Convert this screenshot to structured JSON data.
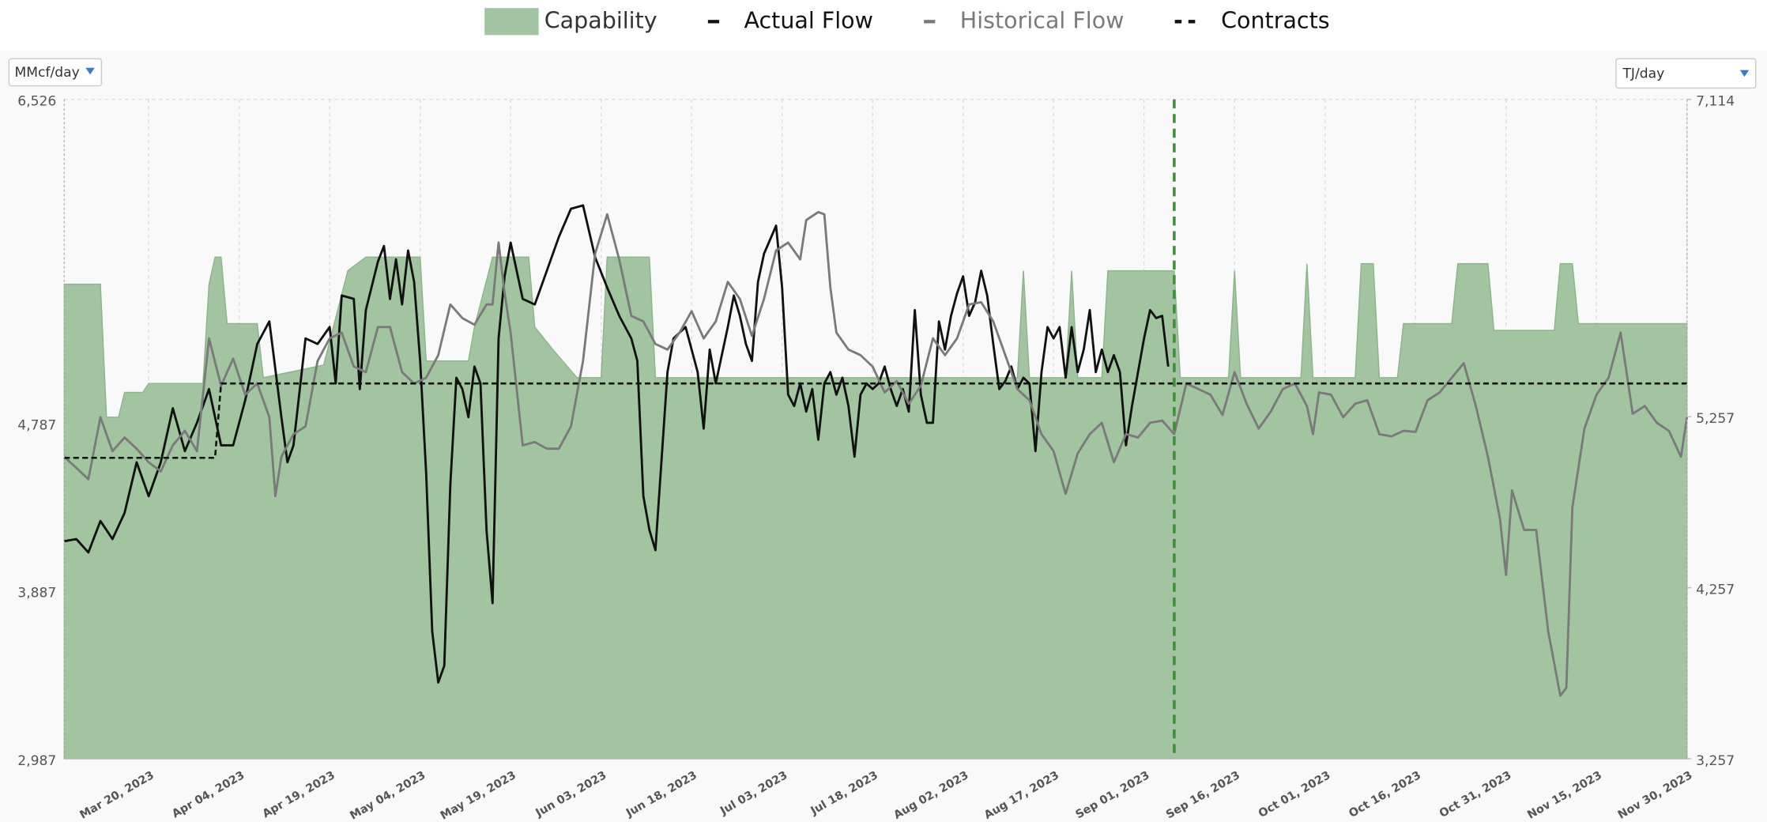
{
  "chart_data": {
    "type": "line",
    "legend": "top",
    "grid": true,
    "ylabel": "MMcf/day",
    "y2label": "TJ/day",
    "xlim": [
      "2023-03-06",
      "2023-11-30"
    ],
    "xticks": [
      {
        "value": "2023-03-20",
        "label": "Mar 20, 2023"
      },
      {
        "value": "2023-04-04",
        "label": "Apr 04, 2023"
      },
      {
        "value": "2023-04-19",
        "label": "Apr 19, 2023"
      },
      {
        "value": "2023-05-04",
        "label": "May 04, 2023"
      },
      {
        "value": "2023-05-19",
        "label": "May 19, 2023"
      },
      {
        "value": "2023-06-03",
        "label": "Jun 03, 2023"
      },
      {
        "value": "2023-06-18",
        "label": "Jun 18, 2023"
      },
      {
        "value": "2023-07-03",
        "label": "Jul 03, 2023"
      },
      {
        "value": "2023-07-18",
        "label": "Jul 18, 2023"
      },
      {
        "value": "2023-08-02",
        "label": "Aug 02, 2023"
      },
      {
        "value": "2023-08-17",
        "label": "Aug 17, 2023"
      },
      {
        "value": "2023-09-01",
        "label": "Sep 01, 2023"
      },
      {
        "value": "2023-09-16",
        "label": "Sep 16, 2023"
      },
      {
        "value": "2023-10-01",
        "label": "Oct 01, 2023"
      },
      {
        "value": "2023-10-16",
        "label": "Oct 16, 2023"
      },
      {
        "value": "2023-10-31",
        "label": "Oct 31, 2023"
      },
      {
        "value": "2023-11-15",
        "label": "Nov 15, 2023"
      },
      {
        "value": "2023-11-30",
        "label": "Nov 30, 2023"
      }
    ],
    "ylim": [
      2987,
      6526
    ],
    "yticks": [
      {
        "value": 2987,
        "label": "2,987"
      },
      {
        "value": 3887,
        "label": "3,887"
      },
      {
        "value": 4787,
        "label": "4,787"
      },
      {
        "value": 6526,
        "label": "6,526"
      }
    ],
    "y2lim": [
      3257,
      7114
    ],
    "y2ticks": [
      {
        "value": 3257,
        "label": "3,257"
      },
      {
        "value": 4257,
        "label": "4,257"
      },
      {
        "value": 5257,
        "label": "5,257"
      },
      {
        "value": 7114,
        "label": "7,114"
      }
    ],
    "vline": {
      "x": "2023-09-06",
      "color": "#3f8f3a"
    },
    "series": [
      {
        "name": "Capability",
        "style": "area",
        "color": "#a3c4a1",
        "x": [
          "2023-03-06",
          "2023-03-12",
          "2023-03-13",
          "2023-03-15",
          "2023-03-16",
          "2023-03-19",
          "2023-03-20",
          "2023-03-29",
          "2023-03-30",
          "2023-03-31",
          "2023-04-01",
          "2023-04-02",
          "2023-04-07",
          "2023-04-08",
          "2023-04-18",
          "2023-04-22",
          "2023-04-25",
          "2023-05-04",
          "2023-05-05",
          "2023-05-12",
          "2023-05-13",
          "2023-05-16",
          "2023-05-22",
          "2023-05-23",
          "2023-05-26",
          "2023-05-30",
          "2023-06-03",
          "2023-06-04",
          "2023-06-11",
          "2023-06-12",
          "2023-08-11",
          "2023-08-12",
          "2023-08-13",
          "2023-08-19",
          "2023-08-20",
          "2023-08-21",
          "2023-08-25",
          "2023-08-26",
          "2023-09-06",
          "2023-09-07",
          "2023-09-15",
          "2023-09-16",
          "2023-09-17",
          "2023-09-27",
          "2023-09-28",
          "2023-09-29",
          "2023-10-06",
          "2023-10-07",
          "2023-10-09",
          "2023-10-10",
          "2023-10-13",
          "2023-10-14",
          "2023-10-22",
          "2023-10-23",
          "2023-10-28",
          "2023-10-29",
          "2023-11-08",
          "2023-11-09",
          "2023-11-11",
          "2023-11-12",
          "2023-11-30"
        ],
        "values": [
          5534,
          5534,
          4820,
          4820,
          4953,
          4953,
          5001,
          5001,
          5534,
          5679,
          5679,
          5322,
          5322,
          5032,
          5100,
          5606,
          5679,
          5679,
          5122,
          5122,
          5304,
          5679,
          5679,
          5304,
          5183,
          5032,
          5032,
          5679,
          5679,
          5032,
          5032,
          5606,
          5032,
          5032,
          5606,
          5032,
          5032,
          5606,
          5606,
          5032,
          5032,
          5606,
          5032,
          5032,
          5644,
          5032,
          5032,
          5644,
          5644,
          5032,
          5032,
          5322,
          5322,
          5644,
          5644,
          5286,
          5286,
          5644,
          5644,
          5322,
          5322
        ]
      },
      {
        "name": "Actual Flow",
        "style": "line",
        "color": "#111111",
        "x": [
          "2023-03-06",
          "2023-03-08",
          "2023-03-10",
          "2023-03-12",
          "2023-03-14",
          "2023-03-16",
          "2023-03-18",
          "2023-03-20",
          "2023-03-22",
          "2023-03-24",
          "2023-03-26",
          "2023-03-28",
          "2023-03-30",
          "2023-04-01",
          "2023-04-03",
          "2023-04-05",
          "2023-04-07",
          "2023-04-09",
          "2023-04-11",
          "2023-04-12",
          "2023-04-13",
          "2023-04-15",
          "2023-04-17",
          "2023-04-19",
          "2023-04-20",
          "2023-04-21",
          "2023-04-23",
          "2023-04-24",
          "2023-04-25",
          "2023-04-27",
          "2023-04-28",
          "2023-04-29",
          "2023-04-30",
          "2023-05-01",
          "2023-05-02",
          "2023-05-03",
          "2023-05-04",
          "2023-05-05",
          "2023-05-06",
          "2023-05-07",
          "2023-05-08",
          "2023-05-09",
          "2023-05-10",
          "2023-05-11",
          "2023-05-12",
          "2023-05-13",
          "2023-05-14",
          "2023-05-15",
          "2023-05-16",
          "2023-05-17",
          "2023-05-18",
          "2023-05-19",
          "2023-05-21",
          "2023-05-23",
          "2023-05-25",
          "2023-05-27",
          "2023-05-29",
          "2023-05-31",
          "2023-06-02",
          "2023-06-04",
          "2023-06-06",
          "2023-06-08",
          "2023-06-09",
          "2023-06-10",
          "2023-06-11",
          "2023-06-12",
          "2023-06-14",
          "2023-06-15",
          "2023-06-17",
          "2023-06-18",
          "2023-06-19",
          "2023-06-20",
          "2023-06-21",
          "2023-06-22",
          "2023-06-24",
          "2023-06-25",
          "2023-06-26",
          "2023-06-27",
          "2023-06-28",
          "2023-06-29",
          "2023-06-30",
          "2023-07-02",
          "2023-07-03",
          "2023-07-04",
          "2023-07-05",
          "2023-07-06",
          "2023-07-07",
          "2023-07-08",
          "2023-07-09",
          "2023-07-10",
          "2023-07-11",
          "2023-07-12",
          "2023-07-13",
          "2023-07-14",
          "2023-07-15",
          "2023-07-16",
          "2023-07-17",
          "2023-07-18",
          "2023-07-19",
          "2023-07-20",
          "2023-07-21",
          "2023-07-22",
          "2023-07-23",
          "2023-07-24",
          "2023-07-25",
          "2023-07-26",
          "2023-07-27",
          "2023-07-28",
          "2023-07-29",
          "2023-07-30",
          "2023-07-31",
          "2023-08-01",
          "2023-08-02",
          "2023-08-03",
          "2023-08-04",
          "2023-08-05",
          "2023-08-06",
          "2023-08-07",
          "2023-08-08",
          "2023-08-09",
          "2023-08-10",
          "2023-08-11",
          "2023-08-12",
          "2023-08-13",
          "2023-08-14",
          "2023-08-15",
          "2023-08-16",
          "2023-08-17",
          "2023-08-18",
          "2023-08-19",
          "2023-08-20",
          "2023-08-21",
          "2023-08-22",
          "2023-08-23",
          "2023-08-24",
          "2023-08-25",
          "2023-08-26",
          "2023-08-27",
          "2023-08-28",
          "2023-08-29",
          "2023-08-30",
          "2023-08-31",
          "2023-09-01",
          "2023-09-02",
          "2023-09-03",
          "2023-09-04",
          "2023-09-05"
        ],
        "values": [
          4154,
          4166,
          4094,
          4263,
          4166,
          4306,
          4578,
          4396,
          4578,
          4868,
          4638,
          4790,
          4971,
          4669,
          4669,
          4911,
          5213,
          5334,
          4820,
          4578,
          4669,
          5243,
          5213,
          5304,
          5001,
          5473,
          5455,
          4971,
          5395,
          5655,
          5739,
          5455,
          5667,
          5425,
          5715,
          5546,
          5122,
          4517,
          3670,
          3396,
          3486,
          4457,
          5032,
          4971,
          4820,
          5092,
          5001,
          4215,
          3822,
          5243,
          5576,
          5757,
          5455,
          5425,
          5606,
          5788,
          5939,
          5957,
          5679,
          5516,
          5364,
          5243,
          5122,
          4396,
          4215,
          4106,
          5062,
          5243,
          5304,
          5183,
          5062,
          4759,
          5183,
          5001,
          5304,
          5473,
          5364,
          5213,
          5122,
          5546,
          5697,
          5848,
          5516,
          4941,
          4880,
          5001,
          4850,
          4971,
          4699,
          5001,
          5062,
          4941,
          5032,
          4880,
          4608,
          4941,
          5001,
          4971,
          5001,
          5092,
          4971,
          4880,
          4971,
          4850,
          5395,
          4941,
          4790,
          4790,
          5334,
          5183,
          5364,
          5485,
          5576,
          5364,
          5437,
          5606,
          5473,
          5213,
          4971,
          5014,
          5092,
          4971,
          5032,
          5001,
          4638,
          5062,
          5304,
          5243,
          5304,
          5032,
          5304,
          5062,
          5183,
          5395,
          5062,
          5183,
          5062,
          5153,
          5062,
          4669,
          4880,
          5062,
          5243,
          5395,
          5352,
          5364,
          5092
        ]
      },
      {
        "name": "Historical Flow",
        "style": "line",
        "color": "#7a7a7a",
        "x": [
          "2023-03-06",
          "2023-03-08",
          "2023-03-10",
          "2023-03-12",
          "2023-03-14",
          "2023-03-16",
          "2023-03-18",
          "2023-03-20",
          "2023-03-22",
          "2023-03-24",
          "2023-03-26",
          "2023-03-28",
          "2023-03-30",
          "2023-04-01",
          "2023-04-03",
          "2023-04-05",
          "2023-04-07",
          "2023-04-09",
          "2023-04-10",
          "2023-04-11",
          "2023-04-13",
          "2023-04-15",
          "2023-04-17",
          "2023-04-19",
          "2023-04-21",
          "2023-04-23",
          "2023-04-25",
          "2023-04-27",
          "2023-04-29",
          "2023-05-01",
          "2023-05-03",
          "2023-05-05",
          "2023-05-07",
          "2023-05-09",
          "2023-05-11",
          "2023-05-13",
          "2023-05-15",
          "2023-05-16",
          "2023-05-17",
          "2023-05-18",
          "2023-05-19",
          "2023-05-21",
          "2023-05-23",
          "2023-05-25",
          "2023-05-27",
          "2023-05-29",
          "2023-05-31",
          "2023-06-02",
          "2023-06-04",
          "2023-06-06",
          "2023-06-08",
          "2023-06-10",
          "2023-06-12",
          "2023-06-14",
          "2023-06-16",
          "2023-06-18",
          "2023-06-20",
          "2023-06-22",
          "2023-06-24",
          "2023-06-26",
          "2023-06-28",
          "2023-06-30",
          "2023-07-02",
          "2023-07-04",
          "2023-07-06",
          "2023-07-07",
          "2023-07-09",
          "2023-07-10",
          "2023-07-11",
          "2023-07-12",
          "2023-07-14",
          "2023-07-16",
          "2023-07-18",
          "2023-07-20",
          "2023-07-22",
          "2023-07-24",
          "2023-07-26",
          "2023-07-28",
          "2023-07-30",
          "2023-08-01",
          "2023-08-03",
          "2023-08-05",
          "2023-08-07",
          "2023-08-09",
          "2023-08-11",
          "2023-08-13",
          "2023-08-15",
          "2023-08-17",
          "2023-08-19",
          "2023-08-21",
          "2023-08-23",
          "2023-08-25",
          "2023-08-27",
          "2023-08-29",
          "2023-08-31",
          "2023-09-02",
          "2023-09-04",
          "2023-09-06",
          "2023-09-08",
          "2023-09-10",
          "2023-09-12",
          "2023-09-14",
          "2023-09-16",
          "2023-09-18",
          "2023-09-20",
          "2023-09-22",
          "2023-09-24",
          "2023-09-26",
          "2023-09-28",
          "2023-09-29",
          "2023-09-30",
          "2023-10-02",
          "2023-10-04",
          "2023-10-06",
          "2023-10-08",
          "2023-10-10",
          "2023-10-12",
          "2023-10-14",
          "2023-10-16",
          "2023-10-18",
          "2023-10-20",
          "2023-10-22",
          "2023-10-24",
          "2023-10-26",
          "2023-10-28",
          "2023-10-30",
          "2023-10-31",
          "2023-11-01",
          "2023-11-03",
          "2023-11-05",
          "2023-11-07",
          "2023-11-09",
          "2023-11-10",
          "2023-11-11",
          "2023-11-13",
          "2023-11-15",
          "2023-11-17",
          "2023-11-19",
          "2023-11-21",
          "2023-11-23",
          "2023-11-25",
          "2023-11-27",
          "2023-11-29",
          "2023-11-30"
        ],
        "values": [
          4608,
          4548,
          4487,
          4820,
          4638,
          4711,
          4651,
          4578,
          4529,
          4669,
          4747,
          4638,
          5243,
          4989,
          5134,
          4941,
          5001,
          4820,
          4396,
          4608,
          4729,
          4771,
          5122,
          5243,
          5274,
          5092,
          5062,
          5304,
          5304,
          5062,
          5001,
          5032,
          5153,
          5425,
          5352,
          5316,
          5425,
          5425,
          5757,
          5485,
          5274,
          4669,
          4687,
          4651,
          4651,
          4771,
          5122,
          5697,
          5909,
          5667,
          5364,
          5334,
          5213,
          5183,
          5274,
          5389,
          5243,
          5334,
          5546,
          5455,
          5256,
          5455,
          5715,
          5757,
          5667,
          5878,
          5921,
          5909,
          5516,
          5274,
          5183,
          5153,
          5092,
          4953,
          5014,
          4892,
          4989,
          5243,
          5153,
          5243,
          5425,
          5437,
          5334,
          5153,
          4971,
          4911,
          4729,
          4638,
          4408,
          4626,
          4729,
          4790,
          4578,
          4729,
          4711,
          4790,
          4802,
          4729,
          5001,
          4971,
          4941,
          4832,
          5062,
          4892,
          4759,
          4850,
          4971,
          5001,
          4880,
          4729,
          4953,
          4941,
          4820,
          4892,
          4911,
          4729,
          4717,
          4747,
          4741,
          4911,
          4953,
          5032,
          5110,
          4880,
          4608,
          4275,
          3973,
          4427,
          4215,
          4215,
          3670,
          3325,
          3368,
          4336,
          4759,
          4941,
          5032,
          5274,
          4838,
          4880,
          4790,
          4747,
          4608,
          4820
        ]
      },
      {
        "name": "Contracts",
        "style": "dashed",
        "color": "#111111",
        "x": [
          "2023-03-06",
          "2023-03-31",
          "2023-04-01",
          "2023-11-30"
        ],
        "values": [
          4602,
          4602,
          5001,
          5001
        ]
      }
    ]
  }
}
